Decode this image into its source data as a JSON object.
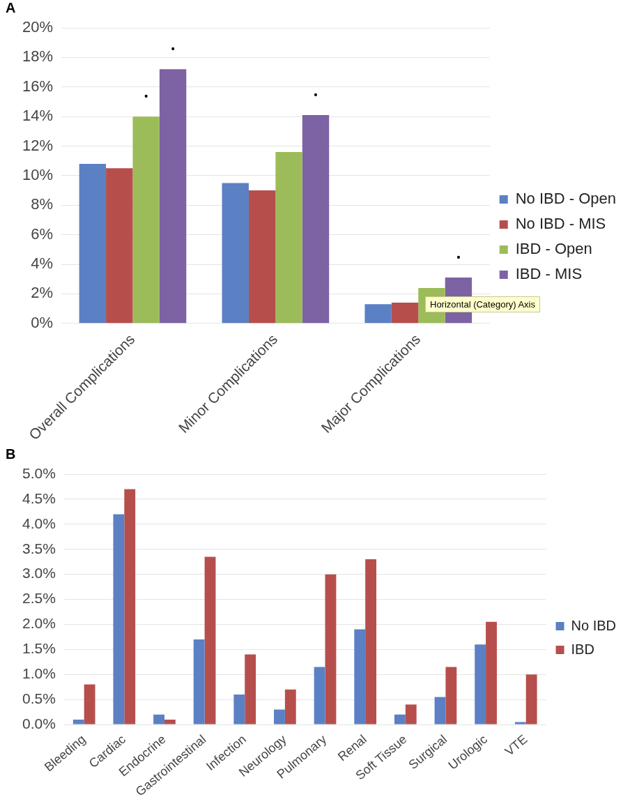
{
  "chart_data": [
    {
      "type": "bar",
      "title": "A",
      "categories": [
        "Overall Complications",
        "Minor Complications",
        "Major Complications"
      ],
      "series": [
        {
          "name": "No IBD - Open",
          "color": "#5b80c4",
          "values": [
            10.8,
            9.5,
            1.3
          ]
        },
        {
          "name": "No IBD - MIS",
          "color": "#b64f4c",
          "values": [
            10.5,
            9.0,
            1.4
          ]
        },
        {
          "name": "IBD - Open",
          "color": "#9cbc59",
          "values": [
            14.0,
            11.6,
            2.4
          ]
        },
        {
          "name": "IBD - MIS",
          "color": "#7d62a4",
          "values": [
            17.2,
            14.1,
            3.1
          ]
        }
      ],
      "ylim": [
        0,
        20
      ],
      "yticks": [
        {
          "value": 0,
          "label": "0%"
        },
        {
          "value": 2,
          "label": "2%"
        },
        {
          "value": 4,
          "label": "4%"
        },
        {
          "value": 6,
          "label": "6%"
        },
        {
          "value": 8,
          "label": "8%"
        },
        {
          "value": 10,
          "label": "10%"
        },
        {
          "value": 12,
          "label": "12%"
        },
        {
          "value": 14,
          "label": "14%"
        },
        {
          "value": 16,
          "label": "16%"
        },
        {
          "value": 18,
          "label": "18%"
        },
        {
          "value": 20,
          "label": "20%"
        }
      ],
      "grid": "y",
      "legend": "right",
      "annotations": [
        "•",
        "•",
        "•",
        "•",
        "Horizontal (Category) Axis"
      ]
    },
    {
      "type": "bar",
      "title": "B",
      "categories": [
        "Bleeding",
        "Cardiac",
        "Endocrine",
        "Gastrointestinal",
        "Infection",
        "Neurology",
        "Pulmonary",
        "Renal",
        "Soft Tissue",
        "Surgical",
        "Urologic",
        "VTE"
      ],
      "series": [
        {
          "name": "No IBD",
          "color": "#5b80c4",
          "values": [
            0.1,
            4.2,
            0.2,
            1.7,
            0.6,
            0.3,
            1.15,
            1.9,
            0.2,
            0.55,
            1.6,
            0.05
          ]
        },
        {
          "name": "IBD",
          "color": "#b64f4c",
          "values": [
            0.8,
            4.7,
            0.1,
            3.35,
            1.4,
            0.7,
            3.0,
            3.3,
            0.4,
            1.15,
            2.05,
            1.0
          ]
        }
      ],
      "ylim": [
        0,
        5
      ],
      "yticks": [
        {
          "value": 0,
          "label": "0.0%"
        },
        {
          "value": 0.5,
          "label": "0.5%"
        },
        {
          "value": 1,
          "label": "1.0%"
        },
        {
          "value": 1.5,
          "label": "1.5%"
        },
        {
          "value": 2,
          "label": "2.0%"
        },
        {
          "value": 2.5,
          "label": "2.5%"
        },
        {
          "value": 3,
          "label": "3.0%"
        },
        {
          "value": 3.5,
          "label": "3.5%"
        },
        {
          "value": 4,
          "label": "4.0%"
        },
        {
          "value": 4.5,
          "label": "4.5%"
        },
        {
          "value": 5,
          "label": "5.0%"
        }
      ],
      "grid": "y",
      "legend": "right"
    }
  ]
}
